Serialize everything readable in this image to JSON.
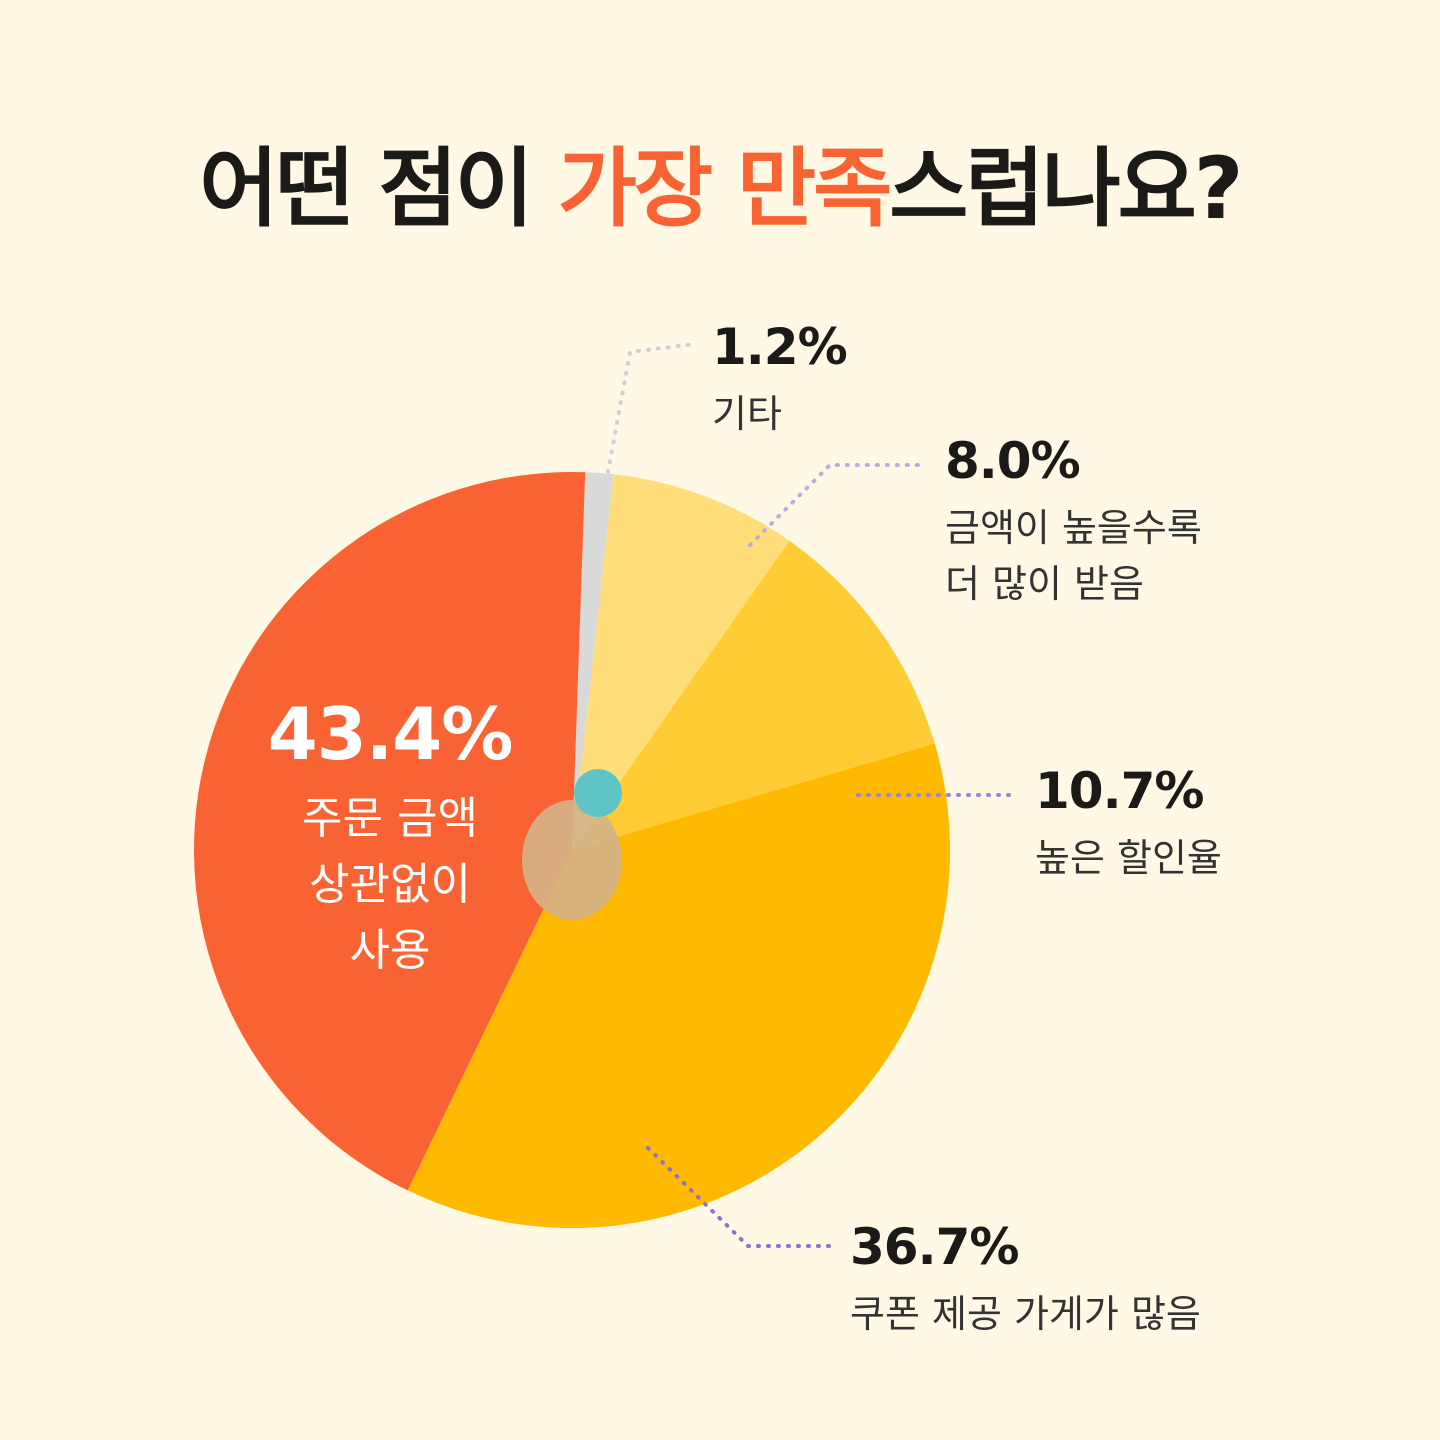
{
  "chart_data": {
    "type": "pie",
    "title": [
      {
        "text": "어떤 점이 ",
        "color": "#1c1a17"
      },
      {
        "text": "가장 만족",
        "color": "#f96232"
      },
      {
        "text": "스럽나요?",
        "color": "#1c1a17"
      }
    ],
    "categories": [
      "기타",
      "금액이 높을수록\n더 많이 받음",
      "높은 할인율",
      "쿠폰 제공 가게가 많음",
      "주문 금액\n상관없이\n사용"
    ],
    "values": [
      1.2,
      8.0,
      10.7,
      36.7,
      43.4
    ],
    "value_labels": [
      "1.2%",
      "8.0%",
      "10.7%",
      "36.7%",
      "43.4%"
    ],
    "colors": [
      "#d9d9d9",
      "#ffdd78",
      "#ffcd33",
      "#ffba00",
      "#f96232"
    ]
  }
}
